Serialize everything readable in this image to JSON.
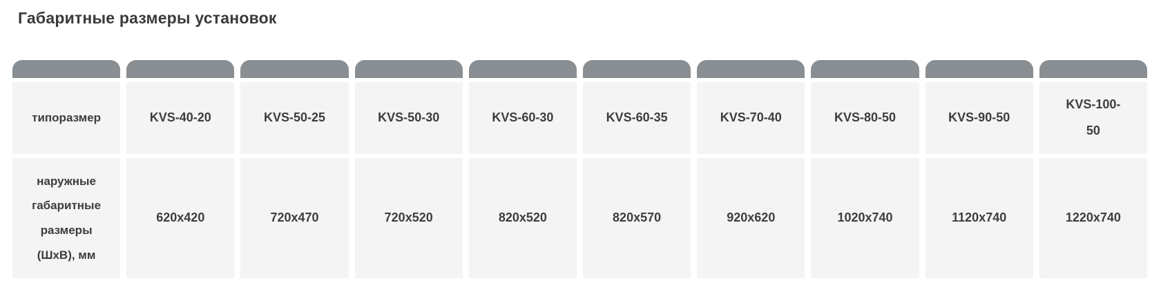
{
  "title": "Габаритные размеры установок",
  "table": {
    "row1_header": "типоразмер",
    "row2_header": "наружные габаритные размеры (ШхВ), мм",
    "data_columns": [
      {
        "model": "KVS-40-20",
        "dimensions": "620x420"
      },
      {
        "model": "KVS-50-25",
        "dimensions": "720x470"
      },
      {
        "model": "KVS-50-30",
        "dimensions": "720x520"
      },
      {
        "model": "KVS-60-30",
        "dimensions": "820x520"
      },
      {
        "model": "KVS-60-35",
        "dimensions": "820x570"
      },
      {
        "model": "KVS-70-40",
        "dimensions": "920x620"
      },
      {
        "model": "KVS-80-50",
        "dimensions": "1020x740"
      },
      {
        "model": "KVS-90-50",
        "dimensions": "1120x740"
      },
      {
        "model": "KVS-100-50",
        "dimensions": "1220x740"
      }
    ]
  },
  "colors": {
    "cap_gray": "#898e92",
    "cell_background": "#f4f4f4",
    "text": "#3d3d3d"
  }
}
